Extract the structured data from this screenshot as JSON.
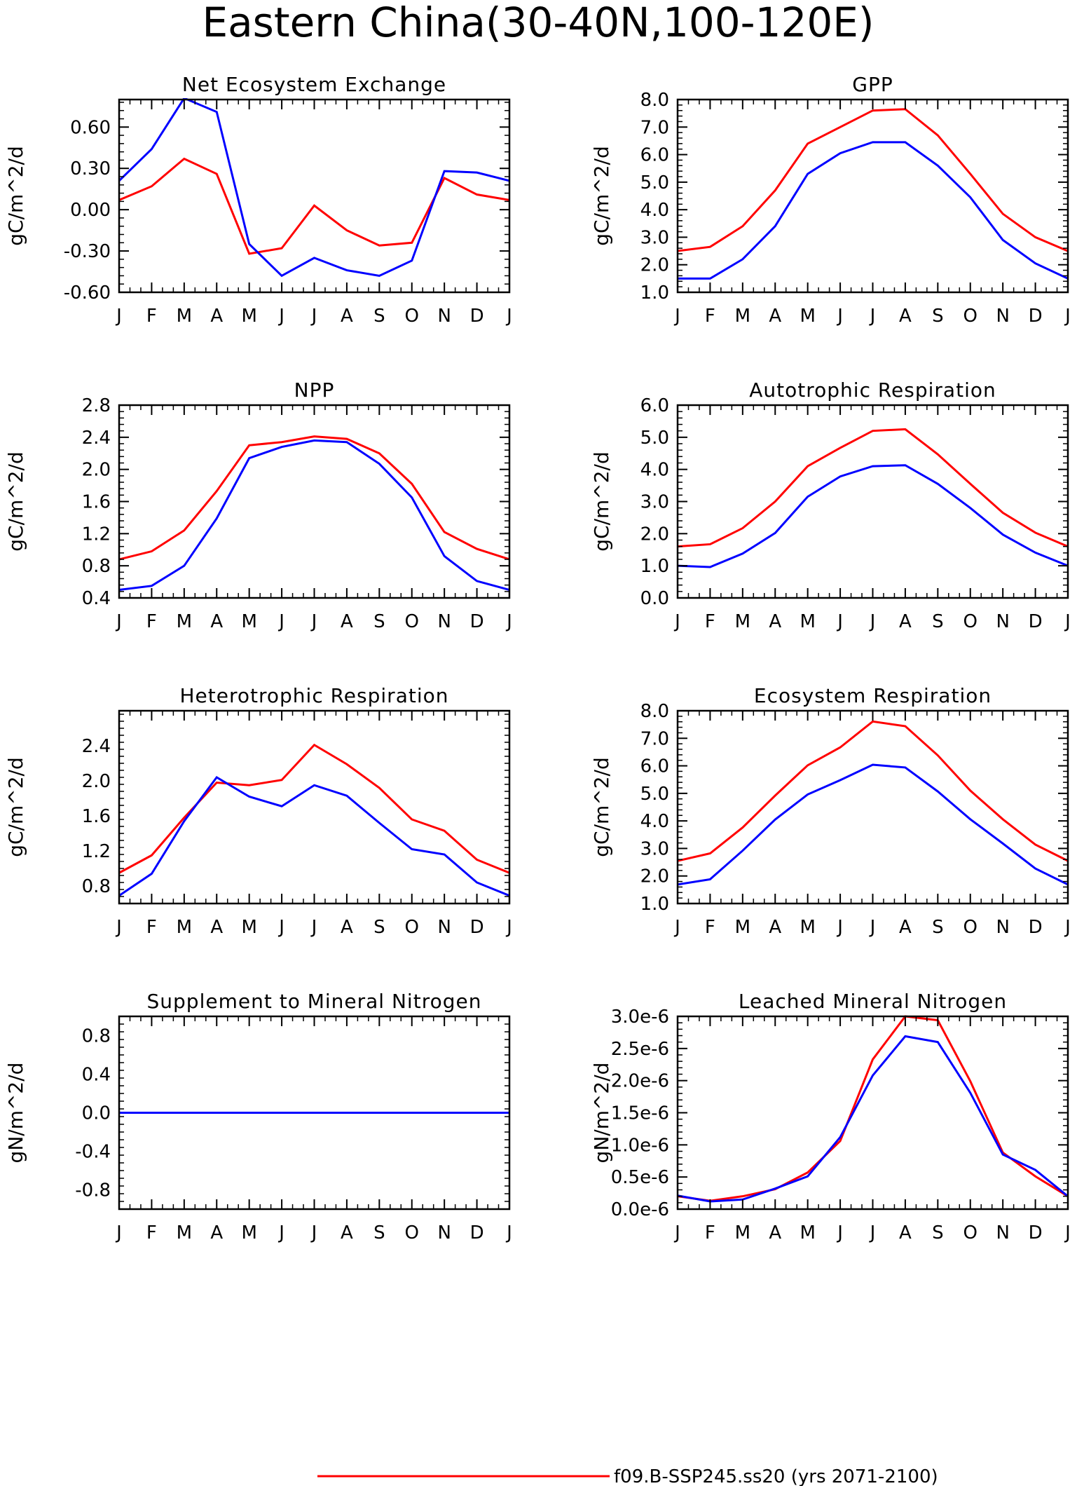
{
  "figure": {
    "title": "Eastern China(30-40N,100-120E)"
  },
  "legend": {
    "entries": [
      {
        "label": "f09.B-SSP245.ss20 (yrs 2071-2100)",
        "color": "#ff0000"
      }
    ]
  },
  "chart_data": [
    {
      "type": "line",
      "title": "Net Ecosystem Exchange",
      "ylabel": "gC/m^2/d",
      "xlabel": "",
      "categories": [
        "J",
        "F",
        "M",
        "A",
        "M",
        "J",
        "J",
        "A",
        "S",
        "O",
        "N",
        "D",
        "J"
      ],
      "ylim": [
        -0.6,
        0.8
      ],
      "yticks": [
        -0.6,
        -0.3,
        0.0,
        0.3,
        0.6
      ],
      "ytick_labels": [
        "-0.60",
        "-0.30",
        "0.00",
        "0.30",
        "0.60"
      ],
      "series": [
        {
          "color": "#ff0000",
          "values": [
            0.07,
            0.17,
            0.37,
            0.26,
            -0.32,
            -0.28,
            0.03,
            -0.15,
            -0.26,
            -0.24,
            0.23,
            0.11,
            0.07
          ]
        },
        {
          "color": "#0000ff",
          "values": [
            0.21,
            0.44,
            0.81,
            0.71,
            -0.25,
            -0.48,
            -0.35,
            -0.44,
            -0.48,
            -0.37,
            0.28,
            0.27,
            0.21
          ]
        }
      ],
      "grid": false
    },
    {
      "type": "line",
      "title": "GPP",
      "ylabel": "gC/m^2/d",
      "xlabel": "",
      "categories": [
        "J",
        "F",
        "M",
        "A",
        "M",
        "J",
        "J",
        "A",
        "S",
        "O",
        "N",
        "D",
        "J"
      ],
      "ylim": [
        1.0,
        8.0
      ],
      "yticks": [
        1.0,
        2.0,
        3.0,
        4.0,
        5.0,
        6.0,
        7.0,
        8.0
      ],
      "ytick_labels": [
        "1.0",
        "2.0",
        "3.0",
        "4.0",
        "5.0",
        "6.0",
        "7.0",
        "8.0"
      ],
      "series": [
        {
          "color": "#ff0000",
          "values": [
            2.5,
            2.65,
            3.4,
            4.7,
            6.4,
            7.0,
            7.6,
            7.65,
            6.7,
            5.3,
            3.85,
            3.0,
            2.5
          ]
        },
        {
          "color": "#0000ff",
          "values": [
            1.5,
            1.5,
            2.2,
            3.4,
            5.3,
            6.05,
            6.45,
            6.45,
            5.6,
            4.45,
            2.9,
            2.05,
            1.5
          ]
        }
      ],
      "grid": false
    },
    {
      "type": "line",
      "title": "NPP",
      "ylabel": "gC/m^2/d",
      "xlabel": "",
      "categories": [
        "J",
        "F",
        "M",
        "A",
        "M",
        "J",
        "J",
        "A",
        "S",
        "O",
        "N",
        "D",
        "J"
      ],
      "ylim": [
        0.4,
        2.8
      ],
      "yticks": [
        0.4,
        0.8,
        1.2,
        1.6,
        2.0,
        2.4,
        2.8
      ],
      "ytick_labels": [
        "0.4",
        "0.8",
        "1.2",
        "1.6",
        "2.0",
        "2.4",
        "2.8"
      ],
      "series": [
        {
          "color": "#ff0000",
          "values": [
            0.88,
            0.98,
            1.24,
            1.73,
            2.3,
            2.34,
            2.41,
            2.38,
            2.2,
            1.82,
            1.22,
            1.01,
            0.88
          ]
        },
        {
          "color": "#0000ff",
          "values": [
            0.5,
            0.55,
            0.8,
            1.39,
            2.14,
            2.28,
            2.36,
            2.34,
            2.07,
            1.65,
            0.92,
            0.61,
            0.5
          ]
        }
      ],
      "grid": false
    },
    {
      "type": "line",
      "title": "Autotrophic Respiration",
      "ylabel": "gC/m^2/d",
      "xlabel": "",
      "categories": [
        "J",
        "F",
        "M",
        "A",
        "M",
        "J",
        "J",
        "A",
        "S",
        "O",
        "N",
        "D",
        "J"
      ],
      "ylim": [
        0.0,
        6.0
      ],
      "yticks": [
        0.0,
        1.0,
        2.0,
        3.0,
        4.0,
        5.0,
        6.0
      ],
      "ytick_labels": [
        "0.0",
        "1.0",
        "2.0",
        "3.0",
        "4.0",
        "5.0",
        "6.0"
      ],
      "series": [
        {
          "color": "#ff0000",
          "values": [
            1.6,
            1.67,
            2.17,
            3.0,
            4.1,
            4.67,
            5.2,
            5.25,
            4.47,
            3.55,
            2.65,
            2.03,
            1.6
          ]
        },
        {
          "color": "#0000ff",
          "values": [
            1.0,
            0.96,
            1.38,
            2.02,
            3.15,
            3.78,
            4.1,
            4.13,
            3.55,
            2.8,
            1.97,
            1.41,
            1.0
          ]
        }
      ],
      "grid": false
    },
    {
      "type": "line",
      "title": "Heterotrophic Respiration",
      "ylabel": "gC/m^2/d",
      "xlabel": "",
      "categories": [
        "J",
        "F",
        "M",
        "A",
        "M",
        "J",
        "J",
        "A",
        "S",
        "O",
        "N",
        "D",
        "J"
      ],
      "ylim": [
        0.6,
        2.8
      ],
      "yticks": [
        0.8,
        1.2,
        1.6,
        2.0,
        2.4
      ],
      "ytick_labels": [
        "0.8",
        "1.2",
        "1.6",
        "2.0",
        "2.4"
      ],
      "series": [
        {
          "color": "#ff0000",
          "values": [
            0.95,
            1.15,
            1.58,
            1.98,
            1.95,
            2.01,
            2.41,
            2.19,
            1.92,
            1.56,
            1.43,
            1.1,
            0.95
          ]
        },
        {
          "color": "#0000ff",
          "values": [
            0.69,
            0.94,
            1.54,
            2.04,
            1.82,
            1.71,
            1.95,
            1.83,
            1.52,
            1.22,
            1.16,
            0.84,
            0.69
          ]
        }
      ],
      "grid": false
    },
    {
      "type": "line",
      "title": "Ecosystem Respiration",
      "ylabel": "gC/m^2/d",
      "xlabel": "",
      "categories": [
        "J",
        "F",
        "M",
        "A",
        "M",
        "J",
        "J",
        "A",
        "S",
        "O",
        "N",
        "D",
        "J"
      ],
      "ylim": [
        1.0,
        8.0
      ],
      "yticks": [
        1.0,
        2.0,
        3.0,
        4.0,
        5.0,
        6.0,
        7.0,
        8.0
      ],
      "ytick_labels": [
        "1.0",
        "2.0",
        "3.0",
        "4.0",
        "5.0",
        "6.0",
        "7.0",
        "8.0"
      ],
      "series": [
        {
          "color": "#ff0000",
          "values": [
            2.55,
            2.82,
            3.76,
            4.92,
            6.02,
            6.67,
            7.61,
            7.44,
            6.38,
            5.1,
            4.06,
            3.14,
            2.55
          ]
        },
        {
          "color": "#0000ff",
          "values": [
            1.69,
            1.88,
            2.92,
            4.05,
            4.96,
            5.48,
            6.04,
            5.94,
            5.07,
            4.06,
            3.18,
            2.27,
            1.69
          ]
        }
      ],
      "grid": false
    },
    {
      "type": "line",
      "title": "Supplement to Mineral Nitrogen",
      "ylabel": "gN/m^2/d",
      "xlabel": "",
      "categories": [
        "J",
        "F",
        "M",
        "A",
        "M",
        "J",
        "J",
        "A",
        "S",
        "O",
        "N",
        "D",
        "J"
      ],
      "ylim": [
        -1.0,
        1.0
      ],
      "yticks": [
        -0.8,
        -0.4,
        0.0,
        0.4,
        0.8
      ],
      "ytick_labels": [
        "-0.8",
        "-0.4",
        "0.0",
        "0.4",
        "0.8"
      ],
      "series": [
        {
          "color": "#ff0000",
          "values": [
            0,
            0,
            0,
            0,
            0,
            0,
            0,
            0,
            0,
            0,
            0,
            0,
            0
          ]
        },
        {
          "color": "#0000ff",
          "values": [
            0,
            0,
            0,
            0,
            0,
            0,
            0,
            0,
            0,
            0,
            0,
            0,
            0
          ]
        }
      ],
      "grid": false
    },
    {
      "type": "line",
      "title": "Leached Mineral Nitrogen",
      "ylabel": "gN/m^2/d",
      "xlabel": "",
      "categories": [
        "J",
        "F",
        "M",
        "A",
        "M",
        "J",
        "J",
        "A",
        "S",
        "O",
        "N",
        "D",
        "J"
      ],
      "ylim": [
        0.0,
        3e-06
      ],
      "yticks": [
        0.0,
        5e-07,
        1e-06,
        1.5e-06,
        2e-06,
        2.5e-06,
        3e-06
      ],
      "ytick_labels": [
        "0.0e-6",
        "0.5e-6",
        "1.0e-6",
        "1.5e-6",
        "2.0e-6",
        "2.5e-6",
        "3.0e-6"
      ],
      "series": [
        {
          "color": "#ff0000",
          "values": [
            2e-07,
            1.3e-07,
            2e-07,
            3.1e-07,
            5.7e-07,
            1.06e-06,
            2.33e-06,
            3e-06,
            2.94e-06,
            1.99e-06,
            8.8e-07,
            5.1e-07,
            2e-07
          ]
        },
        {
          "color": "#0000ff",
          "values": [
            2.1e-07,
            1.2e-07,
            1.5e-07,
            3.2e-07,
            5.1e-07,
            1.12e-06,
            2.08e-06,
            2.69e-06,
            2.6e-06,
            1.81e-06,
            8.5e-07,
            6.1e-07,
            2e-07
          ]
        }
      ],
      "grid": false
    }
  ]
}
